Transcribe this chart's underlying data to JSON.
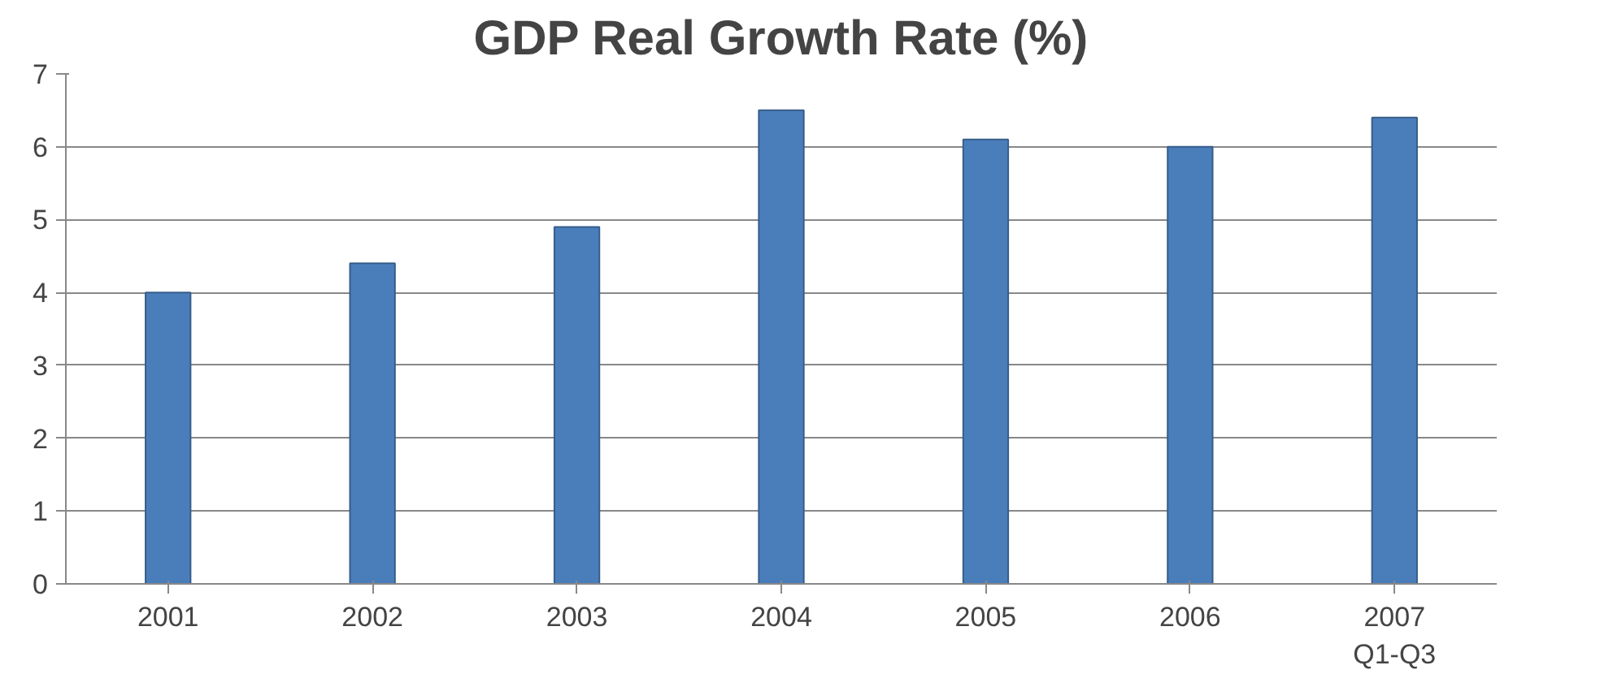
{
  "chart_data": {
    "type": "bar",
    "title": "GDP Real Growth Rate (%)",
    "categories": [
      "2001",
      "2002",
      "2003",
      "2004",
      "2005",
      "2006",
      "2007\nQ1-Q3"
    ],
    "values": [
      4.0,
      4.4,
      4.9,
      6.5,
      6.1,
      6.0,
      6.4
    ],
    "color": "#4a7ebb",
    "ylim": [
      0,
      7
    ],
    "yticks": [
      0,
      1,
      2,
      3,
      4,
      5,
      6,
      7
    ],
    "grid": "y"
  }
}
